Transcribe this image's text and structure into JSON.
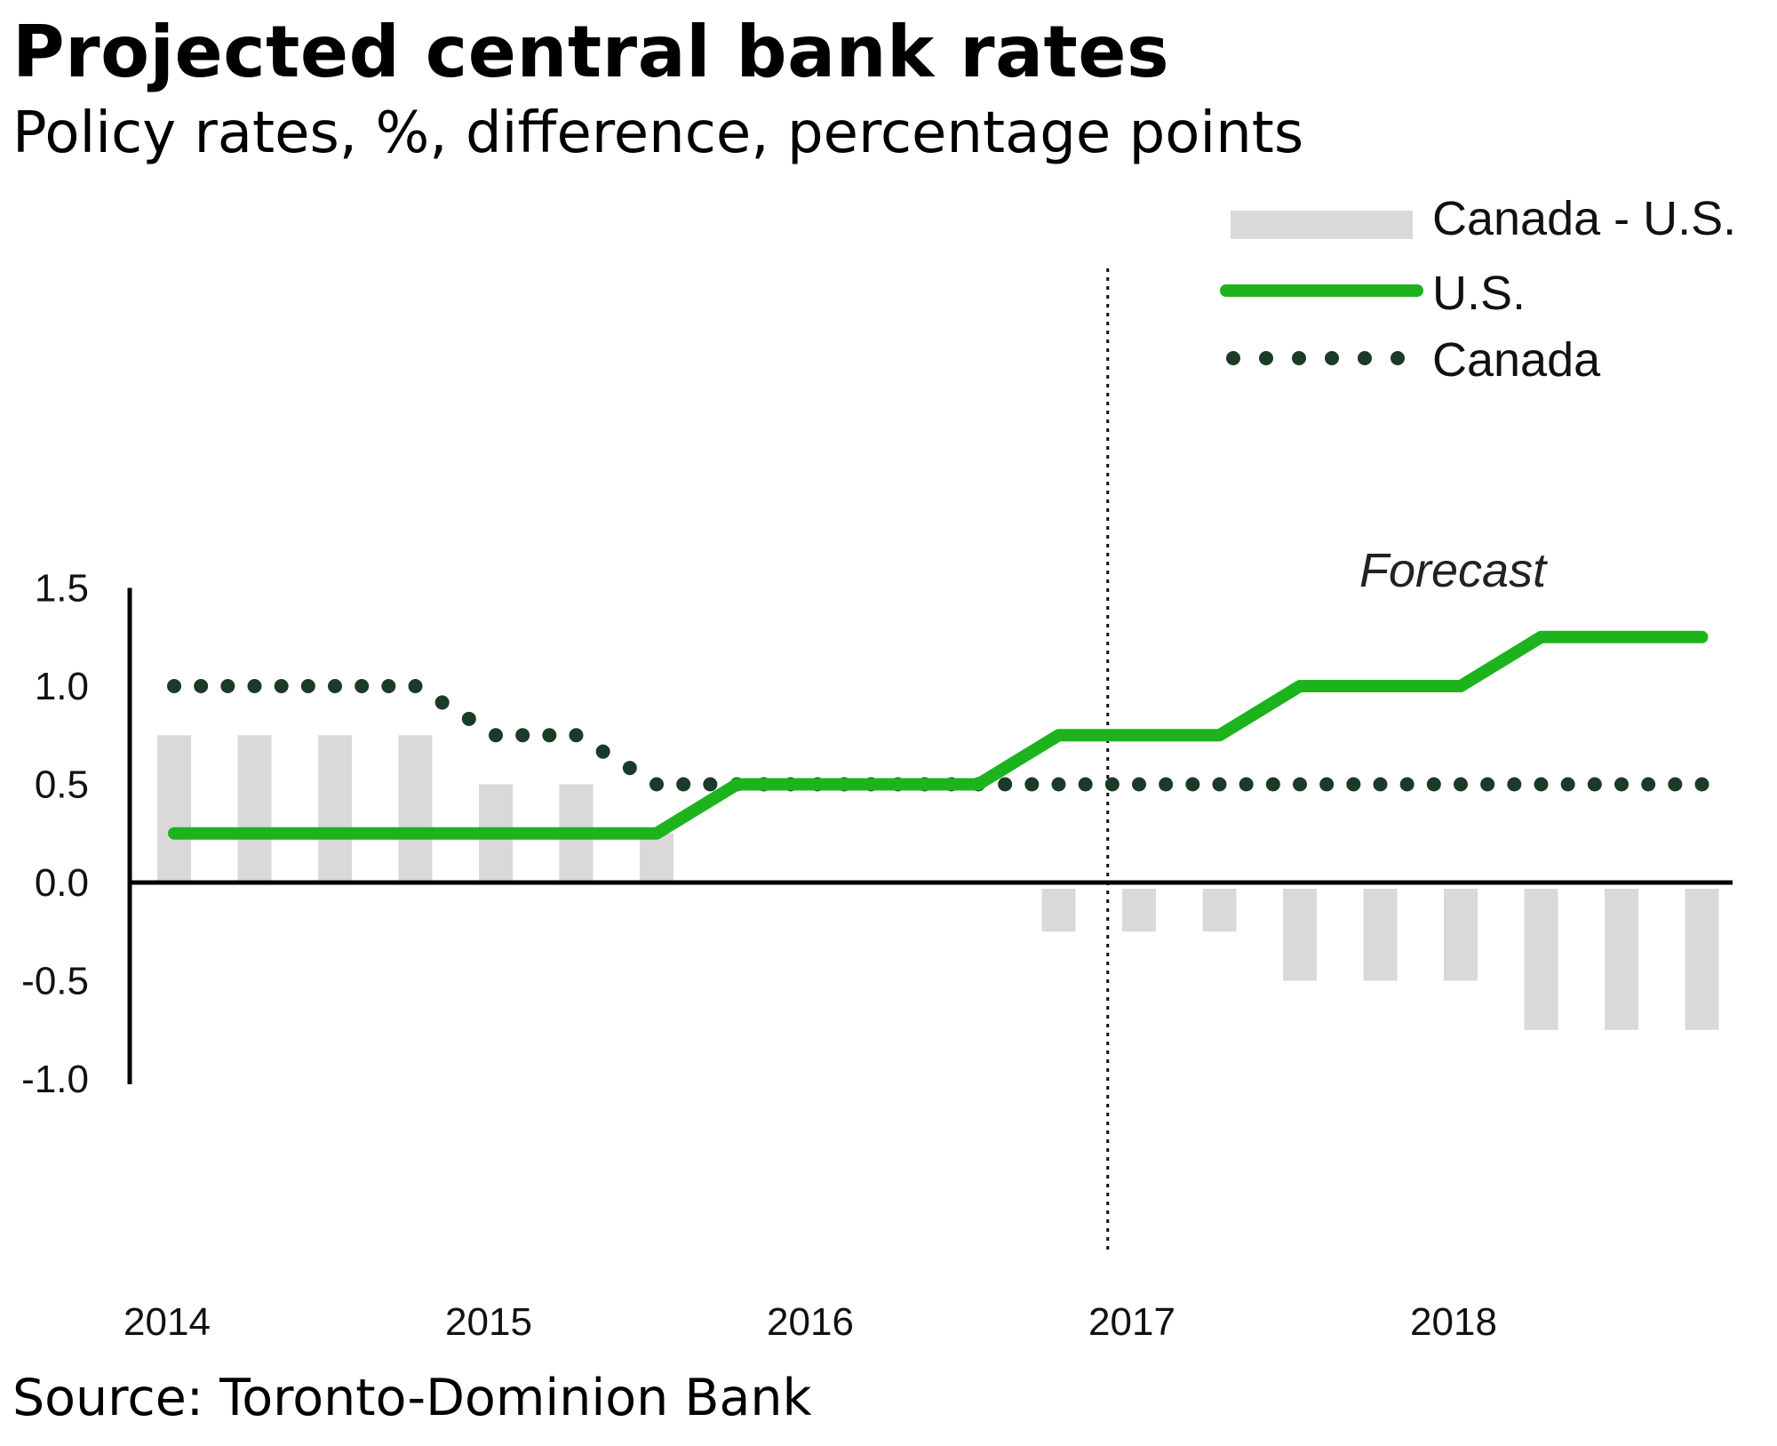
{
  "title": "Projected central bank rates",
  "subtitle": "Policy rates, %, difference, percentage points",
  "source": "Source: Toronto-Dominion Bank",
  "colors": {
    "us": "#1db31d",
    "canada": "#1b3a27",
    "diff": "#d9d9d9",
    "axis": "#000000"
  },
  "chart_data": {
    "type": "bar+line",
    "ylim": [
      -1.0,
      1.5
    ],
    "yticks": [
      "1.5",
      "1.0",
      "0.5",
      "0.0",
      "-0.5",
      "-1.0"
    ],
    "ytick_values": [
      1.5,
      1.0,
      0.5,
      0.0,
      -0.5,
      -1.0
    ],
    "xticks": [
      "2014",
      "2015",
      "2016",
      "2017",
      "2018"
    ],
    "quarters": [
      "2014Q1",
      "2014Q2",
      "2014Q3",
      "2014Q4",
      "2015Q1",
      "2015Q2",
      "2015Q3",
      "2015Q4",
      "2016Q1",
      "2016Q2",
      "2016Q3",
      "2016Q4",
      "2017Q1",
      "2017Q2",
      "2017Q3",
      "2017Q4",
      "2018Q1",
      "2018Q2",
      "2018Q3",
      "2018Q4"
    ],
    "series": [
      {
        "name": "Canada - U.S.",
        "kind": "bar",
        "values": [
          0.75,
          0.75,
          0.75,
          0.75,
          0.5,
          0.5,
          0.25,
          0,
          0,
          0,
          0,
          -0.25,
          -0.25,
          -0.25,
          -0.5,
          -0.5,
          -0.5,
          -0.75,
          -0.75,
          -0.75
        ]
      },
      {
        "name": "U.S.",
        "kind": "line",
        "values": [
          0.25,
          0.25,
          0.25,
          0.25,
          0.25,
          0.25,
          0.25,
          0.5,
          0.5,
          0.5,
          0.5,
          0.75,
          0.75,
          0.75,
          1.0,
          1.0,
          1.0,
          1.25,
          1.25,
          1.25
        ]
      },
      {
        "name": "Canada",
        "kind": "dotted-line",
        "values": [
          1.0,
          1.0,
          1.0,
          1.0,
          0.75,
          0.75,
          0.5,
          0.5,
          0.5,
          0.5,
          0.5,
          0.5,
          0.5,
          0.5,
          0.5,
          0.5,
          0.5,
          0.5,
          0.5,
          0.5
        ]
      }
    ],
    "forecast_start": "2017Q1",
    "annotation": "Forecast",
    "legend": [
      "Canada - U.S.",
      "U.S.",
      "Canada"
    ],
    "legend_position": "top-right"
  }
}
